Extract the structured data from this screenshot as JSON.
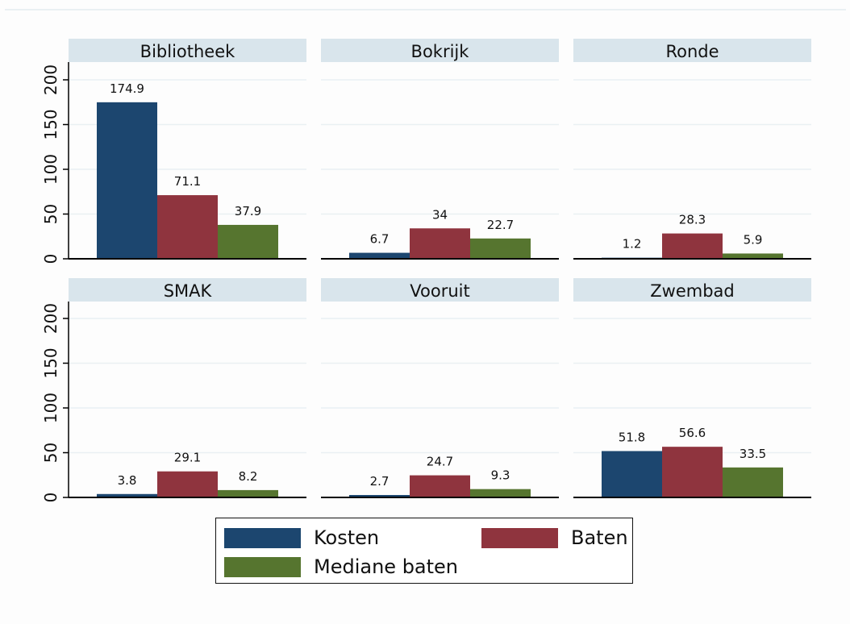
{
  "chart_data": {
    "type": "bar",
    "layout": "small-multiples 2x3",
    "title": "",
    "xlabel": "",
    "ylabel": "",
    "ylim": [
      0,
      220
    ],
    "yticks": [
      0,
      50,
      100,
      150,
      200
    ],
    "grid": true,
    "legend_position": "bottom-center",
    "series_names": [
      "Kosten",
      "Baten",
      "Mediane baten"
    ],
    "colors": {
      "Kosten": "#1c466f",
      "Baten": "#8f343e",
      "Mediane baten": "#56752f"
    },
    "panels": [
      {
        "title": "Bibliotheek",
        "values": {
          "Kosten": 174.9,
          "Baten": 71.1,
          "Mediane baten": 37.9
        },
        "labels": [
          "174.9",
          "71.1",
          "37.9"
        ]
      },
      {
        "title": "Bokrijk",
        "values": {
          "Kosten": 6.7,
          "Baten": 34,
          "Mediane baten": 22.7
        },
        "labels": [
          "6.7",
          "34",
          "22.7"
        ]
      },
      {
        "title": "Ronde",
        "values": {
          "Kosten": 1.2,
          "Baten": 28.3,
          "Mediane baten": 5.9
        },
        "labels": [
          "1.2",
          "28.3",
          "5.9"
        ]
      },
      {
        "title": "SMAK",
        "values": {
          "Kosten": 3.8,
          "Baten": 29.1,
          "Mediane baten": 8.2
        },
        "labels": [
          "3.8",
          "29.1",
          "8.2"
        ]
      },
      {
        "title": "Vooruit",
        "values": {
          "Kosten": 2.7,
          "Baten": 24.7,
          "Mediane baten": 9.3
        },
        "labels": [
          "2.7",
          "24.7",
          "9.3"
        ]
      },
      {
        "title": "Zwembad",
        "values": {
          "Kosten": 51.8,
          "Baten": 56.6,
          "Mediane baten": 33.5
        },
        "labels": [
          "51.8",
          "56.6",
          "33.5"
        ]
      }
    ]
  },
  "legend": {
    "items": [
      {
        "label": "Kosten",
        "color": "#1c466f"
      },
      {
        "label": "Baten",
        "color": "#8f343e"
      },
      {
        "label": "Mediane baten",
        "color": "#56752f"
      }
    ]
  },
  "style": {
    "header_bg": "#d9e5ec",
    "grid_color": "#eaf0f3",
    "axis_color": "#000000"
  }
}
